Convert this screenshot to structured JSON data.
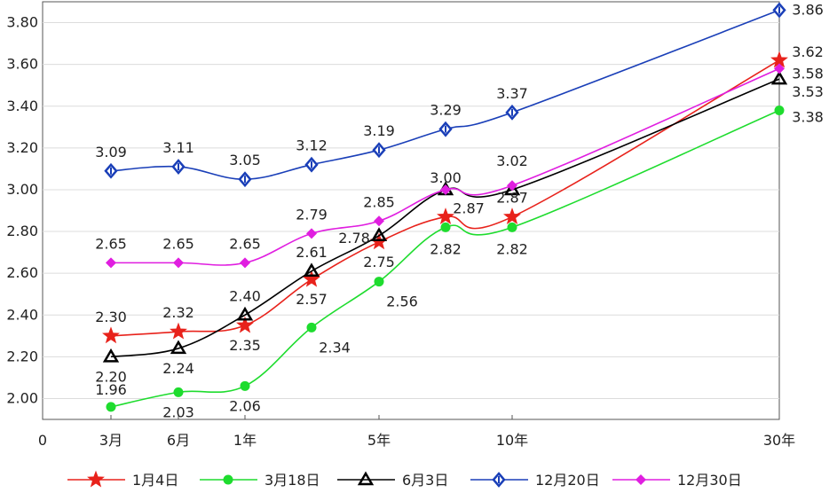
{
  "chart_data": {
    "type": "line",
    "x": [
      3,
      6,
      12,
      24,
      60,
      84,
      120,
      360
    ],
    "x_tick_labels": [
      {
        "x": 0,
        "label": "0"
      },
      {
        "x": 3,
        "label": "3月"
      },
      {
        "x": 6,
        "label": "6月"
      },
      {
        "x": 12,
        "label": "1年"
      },
      {
        "x": 60,
        "label": "5年"
      },
      {
        "x": 120,
        "label": "10年"
      },
      {
        "x": 360,
        "label": "30年"
      }
    ],
    "y_ticks": [
      "2.00",
      "2.20",
      "2.40",
      "2.60",
      "2.80",
      "3.00",
      "3.20",
      "3.40",
      "3.60",
      "3.80"
    ],
    "ylim": [
      1.9,
      3.9
    ],
    "grid": "horizontal",
    "legend_position": "bottom",
    "series": [
      {
        "name": "1月4日",
        "color": "#e8221b",
        "marker": "star",
        "values": [
          2.3,
          2.32,
          2.35,
          2.57,
          2.75,
          2.87,
          2.87,
          3.62
        ],
        "labels": [
          "2.30",
          "2.32",
          "2.35",
          "2.57",
          "2.75",
          "2.87",
          "2.87",
          "3.62"
        ]
      },
      {
        "name": "3月18日",
        "color": "#1edc2e",
        "marker": "circle",
        "values": [
          1.96,
          2.03,
          2.06,
          2.34,
          2.56,
          2.82,
          2.82,
          3.38
        ],
        "labels": [
          "1.96",
          "2.03",
          "2.06",
          "2.34",
          "2.56",
          "2.82",
          "2.82",
          "3.38"
        ]
      },
      {
        "name": "6月3日",
        "color": "#000000",
        "marker": "triangle-open",
        "values": [
          2.2,
          2.24,
          2.4,
          2.61,
          2.78,
          3.0,
          3.0,
          3.53
        ],
        "labels": [
          "2.20",
          "2.24",
          "2.40",
          "2.61",
          "2.78",
          "3.00",
          "",
          "3.53"
        ]
      },
      {
        "name": "12月20日",
        "color": "#1a3fb8",
        "marker": "diamond-open",
        "values": [
          3.09,
          3.11,
          3.05,
          3.12,
          3.19,
          3.29,
          3.37,
          3.86
        ],
        "labels": [
          "3.09",
          "3.11",
          "3.05",
          "3.12",
          "3.19",
          "3.29",
          "3.37",
          "3.86"
        ]
      },
      {
        "name": "12月30日",
        "color": "#e01ee0",
        "marker": "diamond",
        "values": [
          2.65,
          2.65,
          2.65,
          2.79,
          2.85,
          3.0,
          3.02,
          3.58
        ],
        "labels": [
          "2.65",
          "2.65",
          "2.65",
          "2.79",
          "2.85",
          "",
          "3.02",
          "3.58"
        ]
      }
    ]
  }
}
